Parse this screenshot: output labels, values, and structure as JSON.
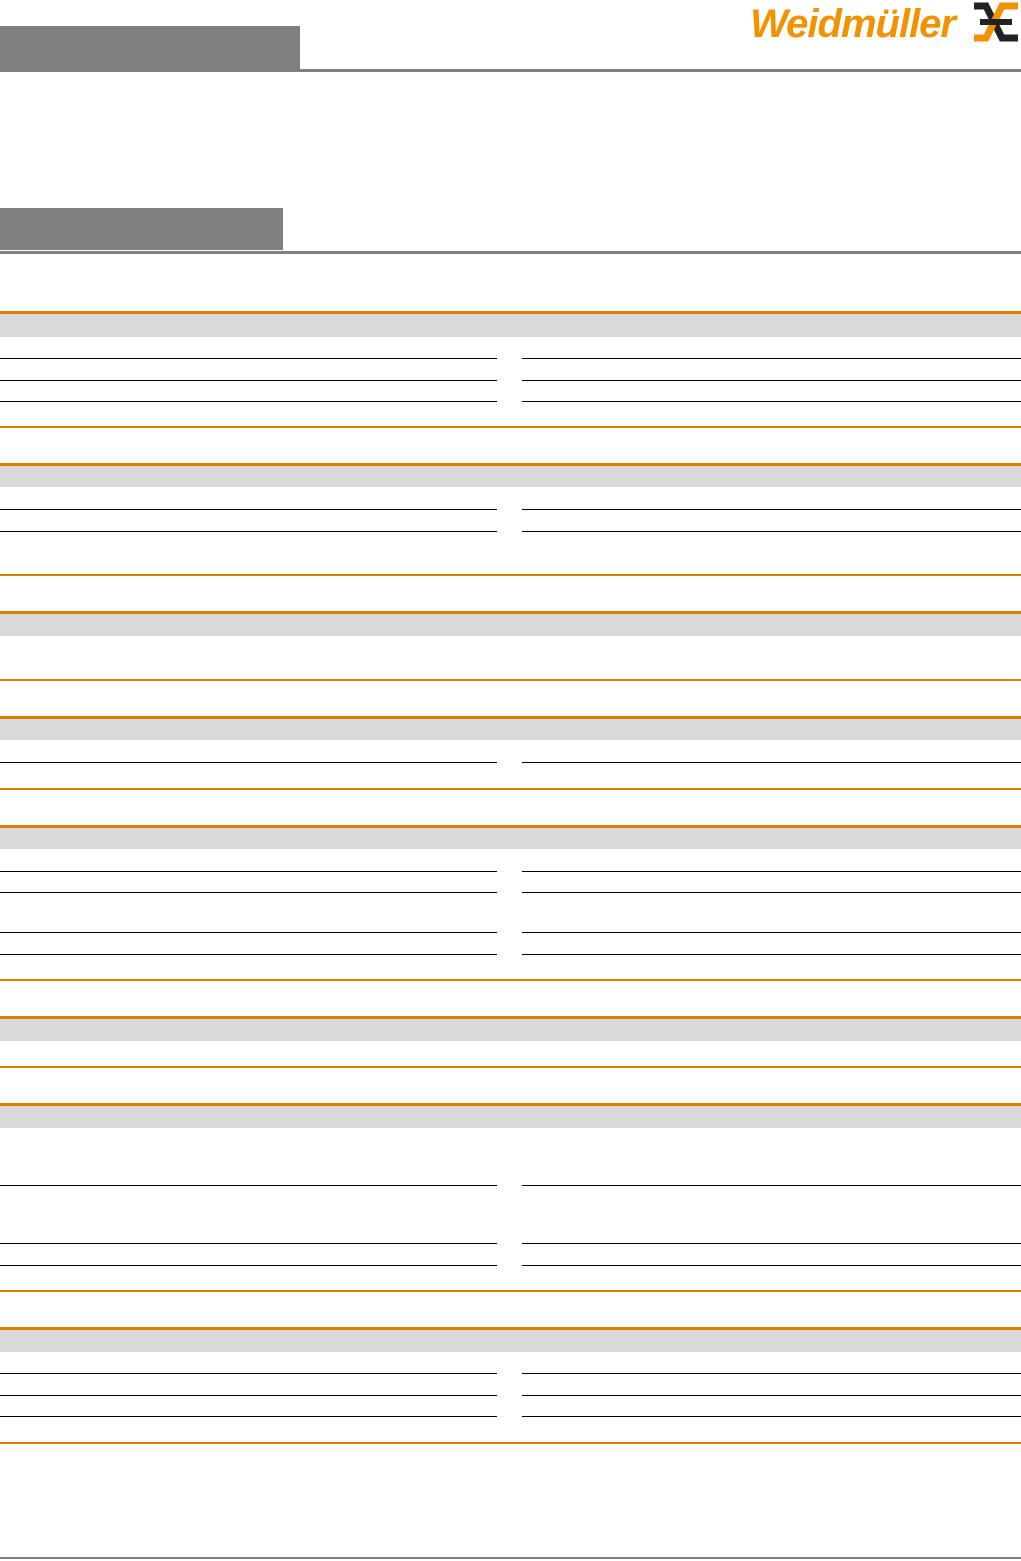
{
  "header": {
    "logo_text": "Weidmüller",
    "logo_icon": "weidmuller-cross-icon"
  },
  "colors": {
    "brand_orange": "#f39200",
    "section_rule": "#e07d00",
    "section_band": "#d9d9d9",
    "title_box": "#808080",
    "logo_dark": "#222222"
  }
}
